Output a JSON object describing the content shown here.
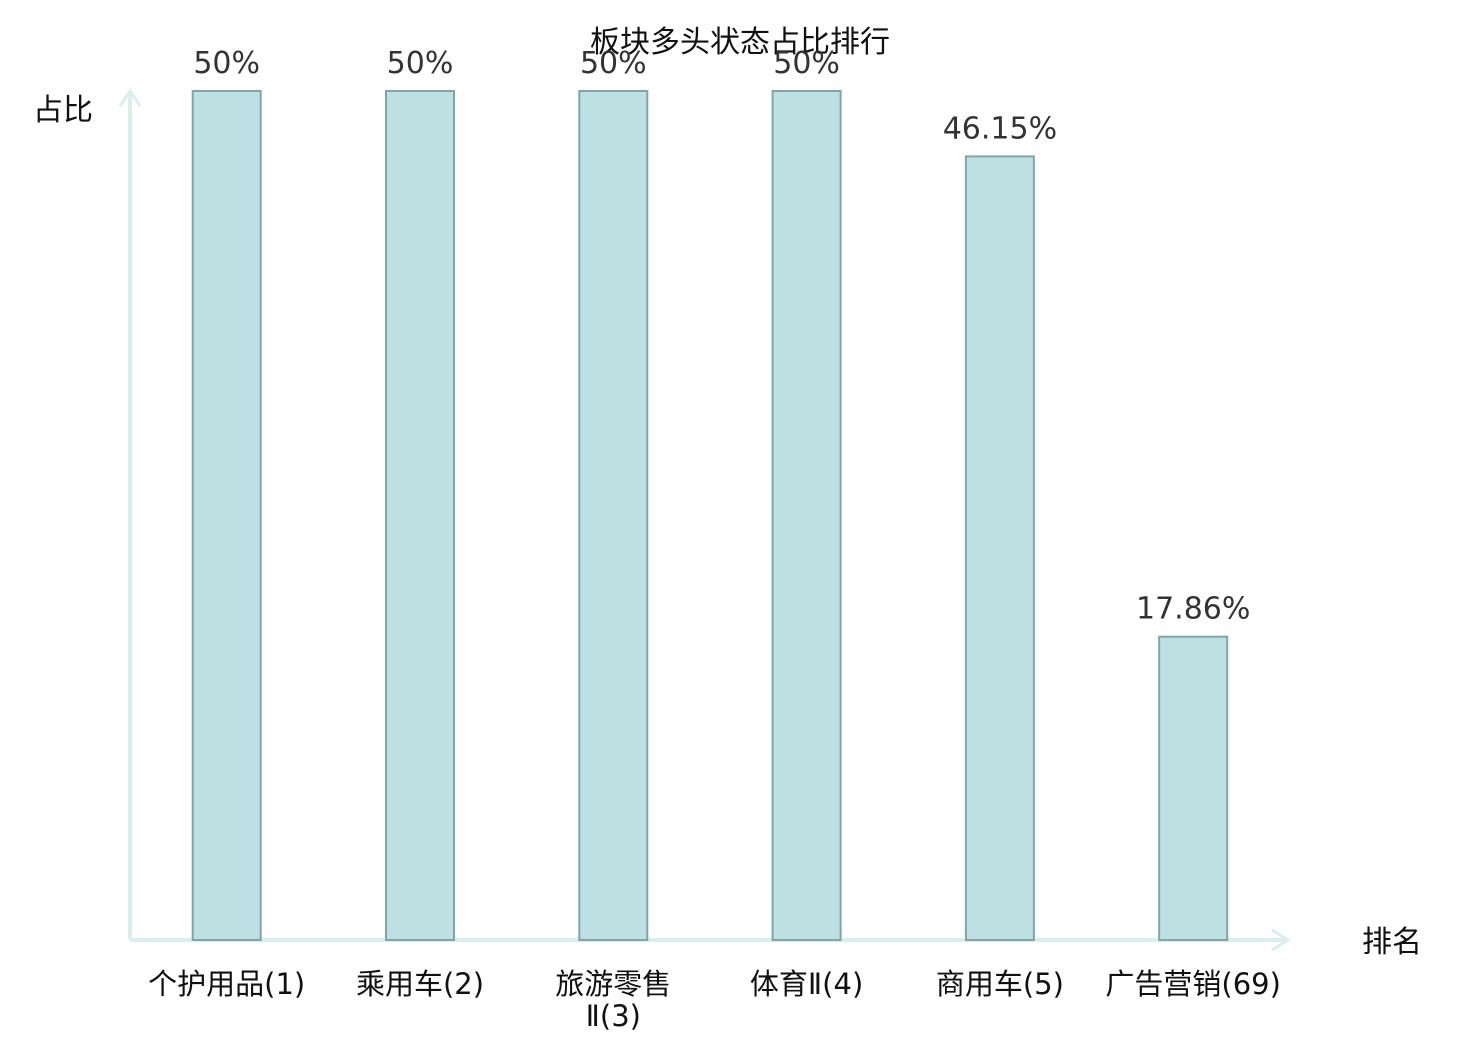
{
  "chart_data": {
    "type": "bar",
    "title": "板块多头状态占比排行",
    "ylabel": "占比",
    "xlabel": "排名",
    "ylim": [
      0,
      50
    ],
    "grid": false,
    "categories": [
      [
        "个护用品(1)"
      ],
      [
        "乘用车(2)"
      ],
      [
        "旅游零售",
        "Ⅱ(3)"
      ],
      [
        "体育Ⅱ(4)"
      ],
      [
        "商用车(5)"
      ],
      [
        "广告营销(69)"
      ]
    ],
    "values": [
      50,
      50,
      50,
      50,
      46.15,
      17.86
    ],
    "value_labels": [
      "50%",
      "50%",
      "50%",
      "50%",
      "46.15%",
      "17.86%"
    ],
    "highlight_index": 5,
    "colors": {
      "bar_fill": "#bde0e3",
      "bar_stroke": "#7fa5a9",
      "axis": "#d9efec",
      "highlight_label": "#e8201c",
      "category_label": "#111111",
      "value_label": "#333333"
    }
  }
}
